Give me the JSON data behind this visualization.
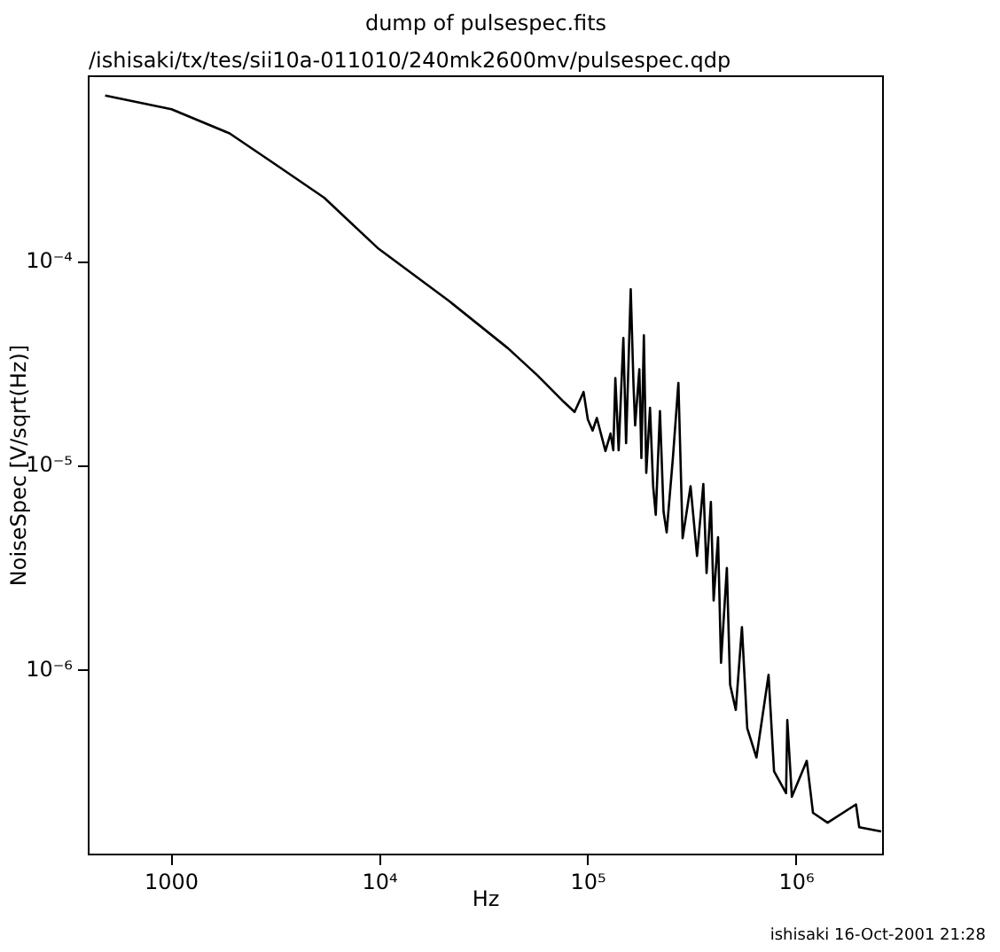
{
  "chart_data": {
    "type": "line",
    "title": "dump of pulsespec.fits",
    "subtitle": "/ishisaki/tx/tes/sii10a-011010/240mk2600mv/pulsespec.qdp",
    "xlabel": "Hz",
    "ylabel": "NoiseSpec [V/sqrt(Hz)]",
    "annotations": [
      "ishisaki 16-Oct-2001 21:28"
    ],
    "log": "xy",
    "grid": false,
    "legend": false,
    "marker": "none",
    "line_style": "solid",
    "xlim": [
      400,
      2600000
    ],
    "ylim": [
      1.25e-07,
      0.00082
    ],
    "xticks": [
      1000,
      {
        "value": 10000,
        "label": "10⁴"
      },
      {
        "value": 100000,
        "label": "10⁵"
      },
      {
        "value": 1000000,
        "label": "10⁶"
      }
    ],
    "yticks": [
      {
        "value": 1e-06,
        "label": "10⁻⁶"
      },
      {
        "value": 1e-05,
        "label": "10⁻⁵"
      },
      {
        "value": 0.0001,
        "label": "10⁻⁴"
      }
    ],
    "series": [
      {
        "color": "#000000",
        "x": [
          480,
          1000,
          1900,
          3200,
          5400,
          9750,
          21400,
          41200,
          57000,
          76500,
          86000,
          95000,
          99600,
          105000,
          110000,
          121000,
          128000,
          132000,
          135000,
          140000,
          147500,
          152000,
          160000,
          165000,
          168000,
          176000,
          180000,
          185000,
          190000,
          198000,
          205000,
          211000,
          221000,
          230000,
          238000,
          255000,
          271000,
          284000,
          310000,
          333000,
          357000,
          370000,
          388000,
          400000,
          420000,
          434000,
          463000,
          480000,
          511000,
          547000,
          580000,
          642000,
          734000,
          780000,
          891000,
          903000,
          950000,
          1120000,
          1200000,
          1410000,
          1930000,
          2000000,
          2550000
        ],
        "values": [
          0.00066,
          0.000565,
          0.00043,
          0.0003,
          0.000208,
          0.000118,
          6.5e-05,
          3.8e-05,
          2.8e-05,
          2.07e-05,
          1.85e-05,
          2.32e-05,
          1.7e-05,
          1.5e-05,
          1.73e-05,
          1.19e-05,
          1.45e-05,
          1.2e-05,
          2.71e-05,
          1.2e-05,
          4.27e-05,
          1.3e-05,
          7.4e-05,
          2.5e-05,
          1.59e-05,
          3e-05,
          1.1e-05,
          4.4e-05,
          9.3e-06,
          1.94e-05,
          8e-06,
          5.8e-06,
          1.87e-05,
          6e-06,
          4.75e-06,
          1.1e-05,
          2.57e-05,
          4.45e-06,
          8e-06,
          3.64e-06,
          8.2e-06,
          3e-06,
          6.7e-06,
          2.2e-06,
          4.5e-06,
          1.09e-06,
          3.18e-06,
          8.5e-07,
          6.4e-07,
          1.63e-06,
          5.2e-07,
          3.74e-07,
          9.5e-07,
          3.2e-07,
          2.5e-07,
          5.7e-07,
          2.4e-07,
          3.6e-07,
          2e-07,
          1.79e-07,
          2.2e-07,
          1.7e-07,
          1.62e-07
        ]
      }
    ]
  }
}
